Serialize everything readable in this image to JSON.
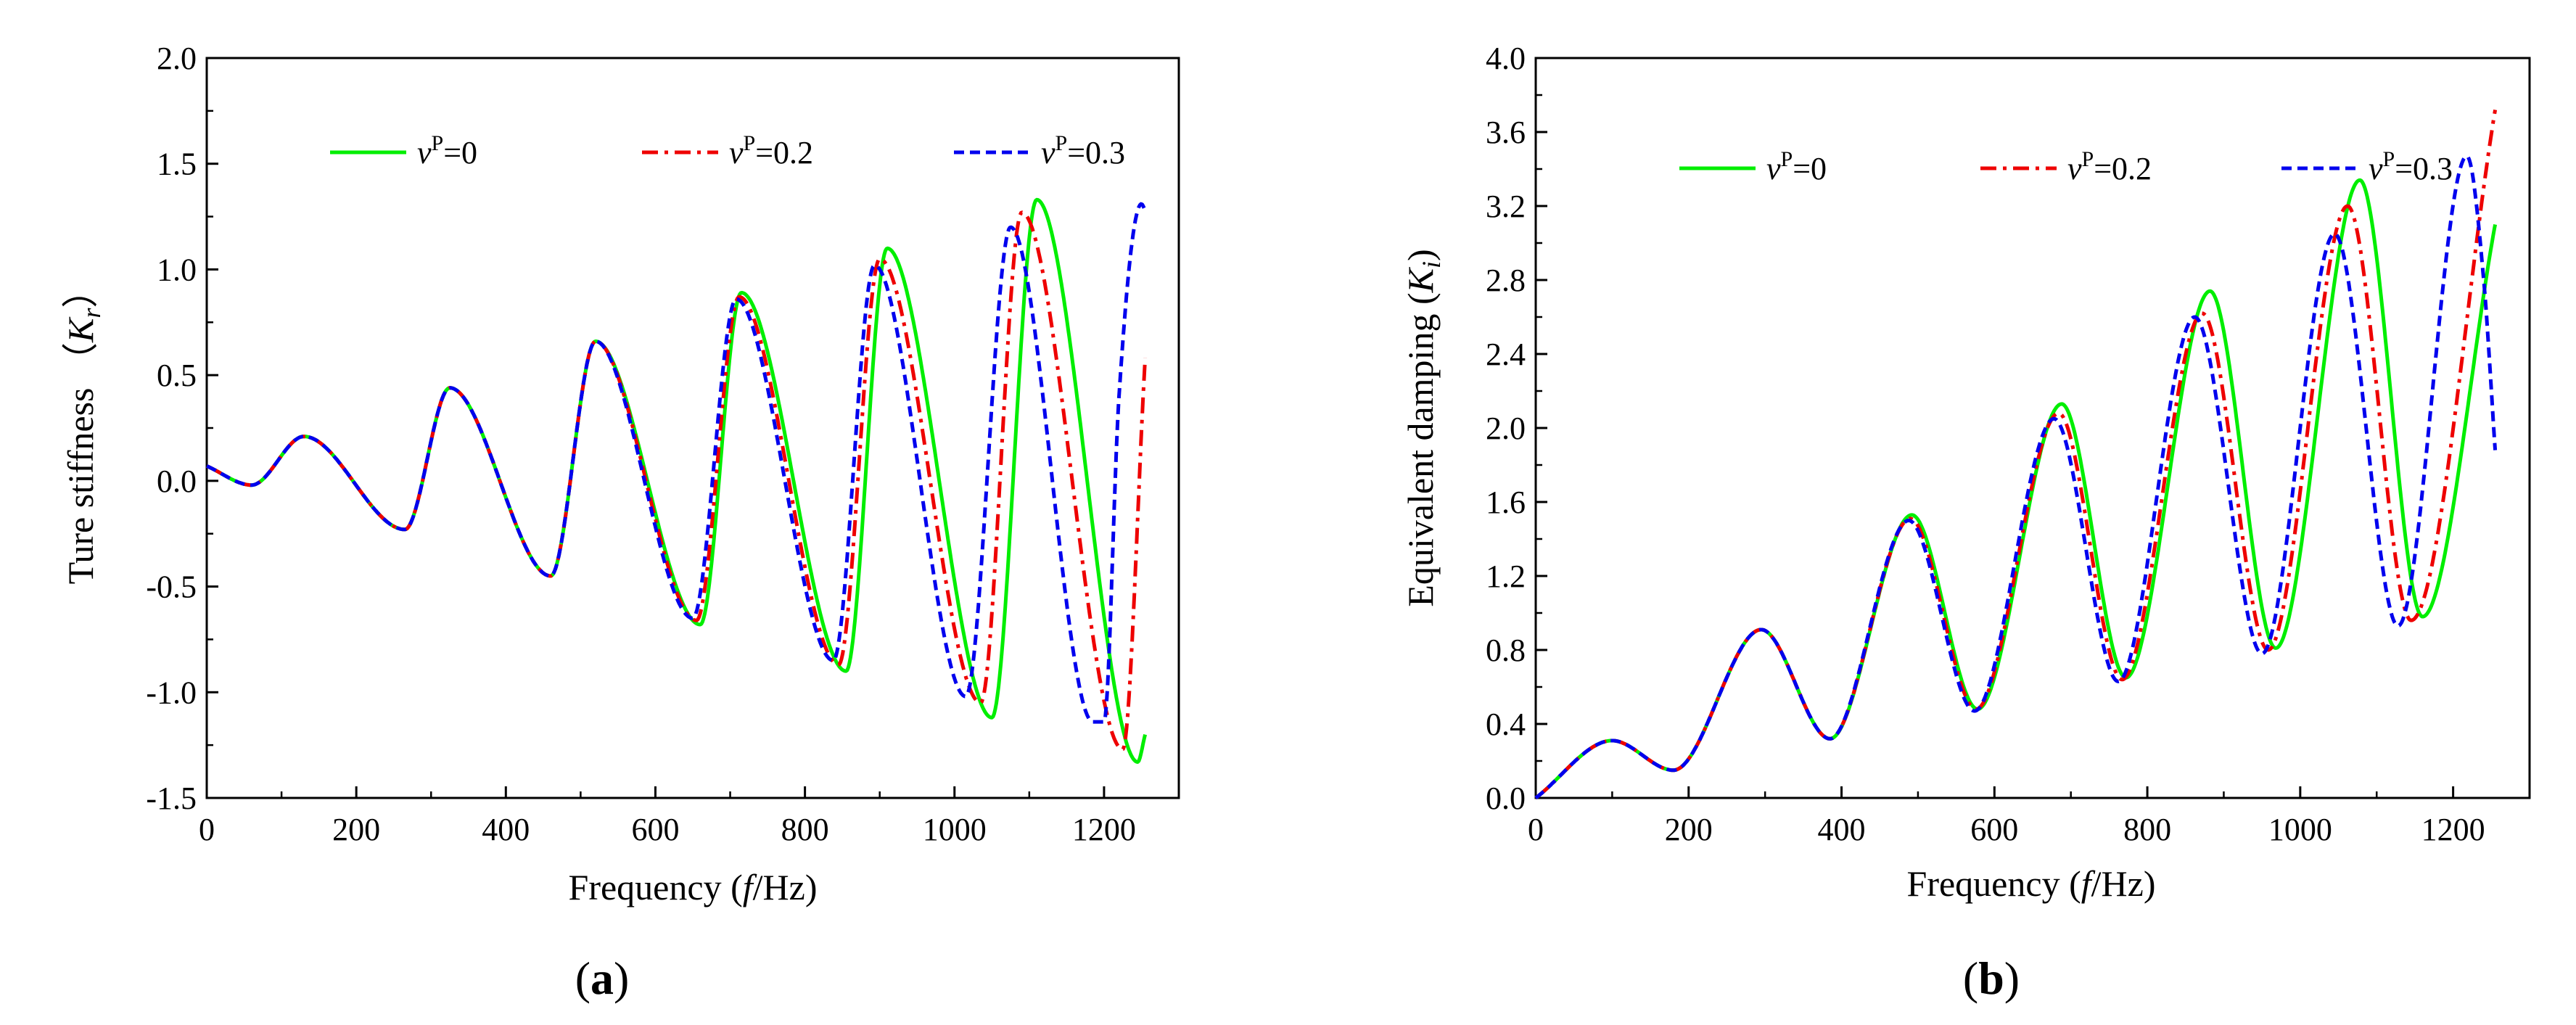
{
  "panels": [
    {
      "id": "a",
      "label": "(a)",
      "label_letter": "a",
      "ylabel": "Ture stiffness （",
      "ylabel_symbol": "K",
      "ylabel_sub": "r",
      "ylabel_close": "）",
      "xlabel_pre": "Frequency (",
      "xlabel_f": "f",
      "xlabel_post": "/Hz)"
    },
    {
      "id": "b",
      "label": "(b)",
      "label_letter": "b",
      "ylabel": "Equivalent damping (",
      "ylabel_symbol": "K",
      "ylabel_sub": "i",
      "ylabel_close": ")",
      "xlabel_pre": "Frequency (",
      "xlabel_f": "f",
      "xlabel_post": "/Hz)"
    }
  ],
  "legend": [
    {
      "symbol": "v",
      "sup": "P",
      "text": "=0",
      "color": "#00ee00",
      "dash": "solid"
    },
    {
      "symbol": "v",
      "sup": "P",
      "text": "=0.2",
      "color": "#ee0000",
      "dash": "dashdot"
    },
    {
      "symbol": "v",
      "sup": "P",
      "text": "=0.3",
      "color": "#0000ee",
      "dash": "dashed"
    }
  ],
  "chart_data": [
    {
      "type": "line",
      "title": "",
      "xlabel": "Frequency (f/Hz)",
      "ylabel": "Ture stiffness（Kr）",
      "xlim": [
        0,
        1300
      ],
      "ylim": [
        -1.5,
        2.0
      ],
      "xticks": [
        0,
        200,
        400,
        600,
        800,
        1000,
        1200
      ],
      "yticks": [
        -1.5,
        -1.0,
        -0.5,
        0.0,
        0.5,
        1.0,
        1.5,
        2.0
      ],
      "ytick_labels": [
        "-1.5",
        "-1.0",
        "-0.5",
        "0.0",
        "0.5",
        "1.0",
        "1.5",
        "2.0"
      ],
      "legend_position": "top",
      "series": [
        {
          "name": "vP=0",
          "x": [
            0,
            60,
            130,
            265,
            325,
            460,
            520,
            660,
            715,
            855,
            910,
            1050,
            1110,
            1245,
            1255
          ],
          "y": [
            0.07,
            -0.02,
            0.21,
            -0.23,
            0.44,
            -0.45,
            0.66,
            -0.68,
            0.89,
            -0.9,
            1.1,
            -1.12,
            1.33,
            -1.33,
            -1.2
          ]
        },
        {
          "name": "vP=0.2",
          "x": [
            0,
            60,
            130,
            265,
            325,
            460,
            520,
            655,
            712,
            845,
            900,
            1035,
            1090,
            1225,
            1255
          ],
          "y": [
            0.07,
            -0.02,
            0.21,
            -0.23,
            0.44,
            -0.45,
            0.66,
            -0.66,
            0.87,
            -0.87,
            1.05,
            -1.05,
            1.27,
            -1.27,
            0.58
          ]
        },
        {
          "name": "vP=0.3",
          "x": [
            0,
            60,
            130,
            265,
            325,
            460,
            520,
            650,
            708,
            838,
            893,
            1015,
            1075,
            1185,
            1200,
            1220,
            1250,
            1255
          ],
          "y": [
            0.07,
            -0.02,
            0.21,
            -0.23,
            0.44,
            -0.45,
            0.66,
            -0.65,
            0.86,
            -0.85,
            1.02,
            -1.02,
            1.2,
            -1.14,
            -1.14,
            0.4,
            1.31,
            1.28
          ]
        }
      ]
    },
    {
      "type": "line",
      "title": "",
      "xlabel": "Frequency (f/Hz)",
      "ylabel": "Equivalent damping (Ki)",
      "xlim": [
        0,
        1300
      ],
      "ylim": [
        0.0,
        4.0
      ],
      "xticks": [
        0,
        200,
        400,
        600,
        800,
        1000,
        1200
      ],
      "yticks": [
        0.0,
        0.4,
        0.8,
        1.2,
        1.6,
        2.0,
        2.4,
        2.8,
        3.2,
        3.6,
        4.0
      ],
      "ytick_labels": [
        "0.0",
        "0.4",
        "0.8",
        "1.2",
        "1.6",
        "2.0",
        "2.4",
        "2.8",
        "3.2",
        "3.6",
        "4.0"
      ],
      "legend_position": "top",
      "series": [
        {
          "name": "vP=0",
          "x": [
            0,
            100,
            180,
            295,
            385,
            492,
            578,
            688,
            772,
            882,
            968,
            1078,
            1160,
            1255
          ],
          "y": [
            0.0,
            0.31,
            0.15,
            0.91,
            0.32,
            1.53,
            0.48,
            2.13,
            0.65,
            2.74,
            0.81,
            3.34,
            0.98,
            3.1
          ]
        },
        {
          "name": "vP=0.2",
          "x": [
            0,
            100,
            180,
            295,
            385,
            490,
            576,
            684,
            767,
            872,
            958,
            1062,
            1145,
            1255
          ],
          "y": [
            0.0,
            0.31,
            0.15,
            0.91,
            0.32,
            1.51,
            0.48,
            2.08,
            0.64,
            2.62,
            0.8,
            3.2,
            0.96,
            3.72
          ]
        },
        {
          "name": "vP=0.3",
          "x": [
            0,
            100,
            180,
            295,
            385,
            488,
            574,
            678,
            762,
            862,
            950,
            1045,
            1128,
            1218,
            1240,
            1255
          ],
          "y": [
            0.0,
            0.31,
            0.15,
            0.91,
            0.32,
            1.5,
            0.47,
            2.05,
            0.63,
            2.6,
            0.78,
            3.05,
            0.93,
            3.47,
            2.8,
            1.88
          ]
        }
      ]
    }
  ]
}
